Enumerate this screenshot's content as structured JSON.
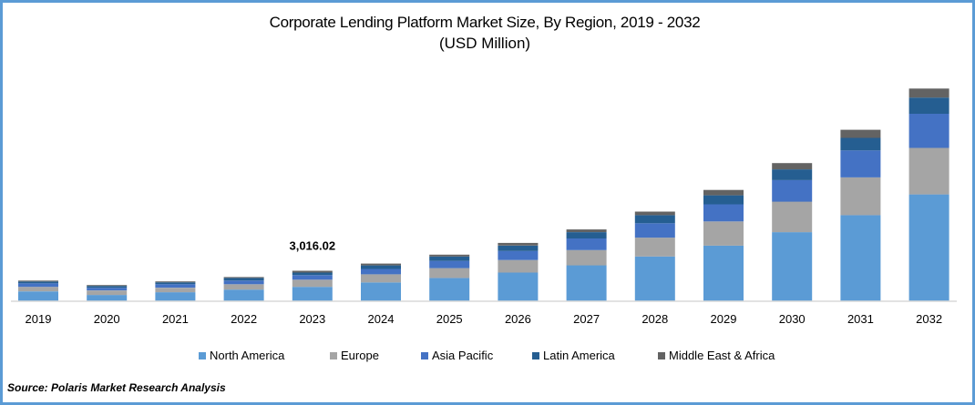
{
  "chart_data": {
    "type": "bar",
    "stacked": true,
    "title": "Corporate Lending Platform Market Size, By Region, 2019 - 2032",
    "subtitle": "(USD Million)",
    "xlabel": "",
    "ylabel": "",
    "ylim": [
      0,
      21500
    ],
    "grid": false,
    "legend_position": "bottom",
    "categories": [
      "2019",
      "2020",
      "2021",
      "2022",
      "2023",
      "2024",
      "2025",
      "2026",
      "2027",
      "2028",
      "2029",
      "2030",
      "2031",
      "2032"
    ],
    "series": [
      {
        "name": "North America",
        "color": "#5b9bd5",
        "values": [
          975,
          620,
          890,
          1150,
          1420,
          1860,
          2300,
          2840,
          3550,
          4430,
          5500,
          6830,
          8520,
          10560
        ]
      },
      {
        "name": "Europe",
        "color": "#a5a5a5",
        "values": [
          445,
          445,
          445,
          530,
          710,
          800,
          975,
          1240,
          1510,
          1860,
          2390,
          3020,
          3730,
          4610
        ]
      },
      {
        "name": "Asia Pacific",
        "color": "#4472c4",
        "values": [
          355,
          265,
          355,
          355,
          445,
          530,
          710,
          890,
          1150,
          1420,
          1690,
          2130,
          2660,
          3370
        ]
      },
      {
        "name": "Latin America",
        "color": "#255e91",
        "values": [
          180,
          180,
          180,
          265,
          265,
          355,
          445,
          530,
          620,
          800,
          890,
          1060,
          1240,
          1600
        ]
      },
      {
        "name": "Middle East & Africa",
        "color": "#636363",
        "values": [
          90,
          90,
          90,
          90,
          176,
          180,
          180,
          265,
          265,
          355,
          530,
          620,
          800,
          890
        ]
      }
    ],
    "annotations": [
      {
        "category": "2023",
        "text": "3,016.02"
      }
    ]
  },
  "source": "Source: Polaris  Market Research Analysis"
}
